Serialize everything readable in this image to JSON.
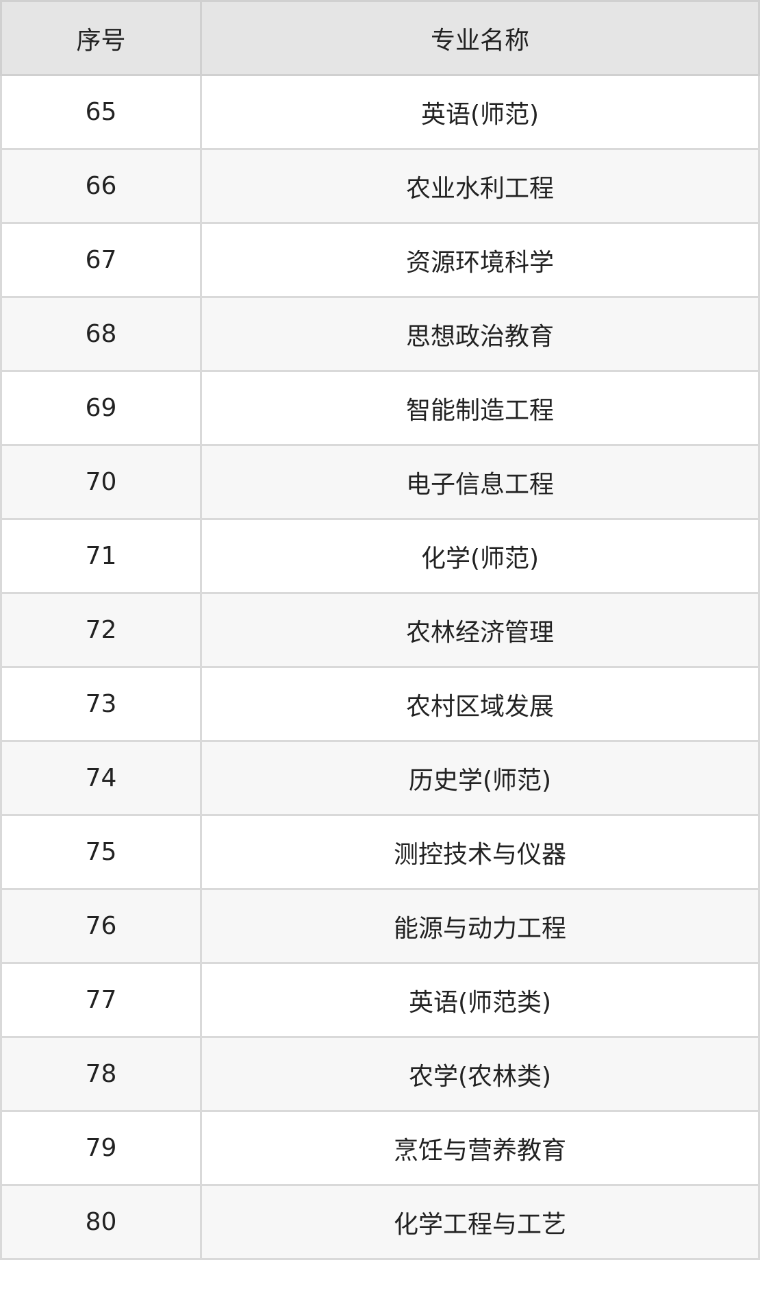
{
  "table": {
    "headers": [
      "序号",
      "专业名称"
    ],
    "rows": [
      [
        "65",
        "英语(师范)"
      ],
      [
        "66",
        "农业水利工程"
      ],
      [
        "67",
        "资源环境科学"
      ],
      [
        "68",
        "思想政治教育"
      ],
      [
        "69",
        "智能制造工程"
      ],
      [
        "70",
        "电子信息工程"
      ],
      [
        "71",
        "化学(师范)"
      ],
      [
        "72",
        "农林经济管理"
      ],
      [
        "73",
        "农村区域发展"
      ],
      [
        "74",
        "历史学(师范)"
      ],
      [
        "75",
        "测控技术与仪器"
      ],
      [
        "76",
        "能源与动力工程"
      ],
      [
        "77",
        "英语(师范类)"
      ],
      [
        "78",
        "农学(农林类)"
      ],
      [
        "79",
        "烹饪与营养教育"
      ],
      [
        "80",
        "化学工程与工艺"
      ]
    ]
  }
}
